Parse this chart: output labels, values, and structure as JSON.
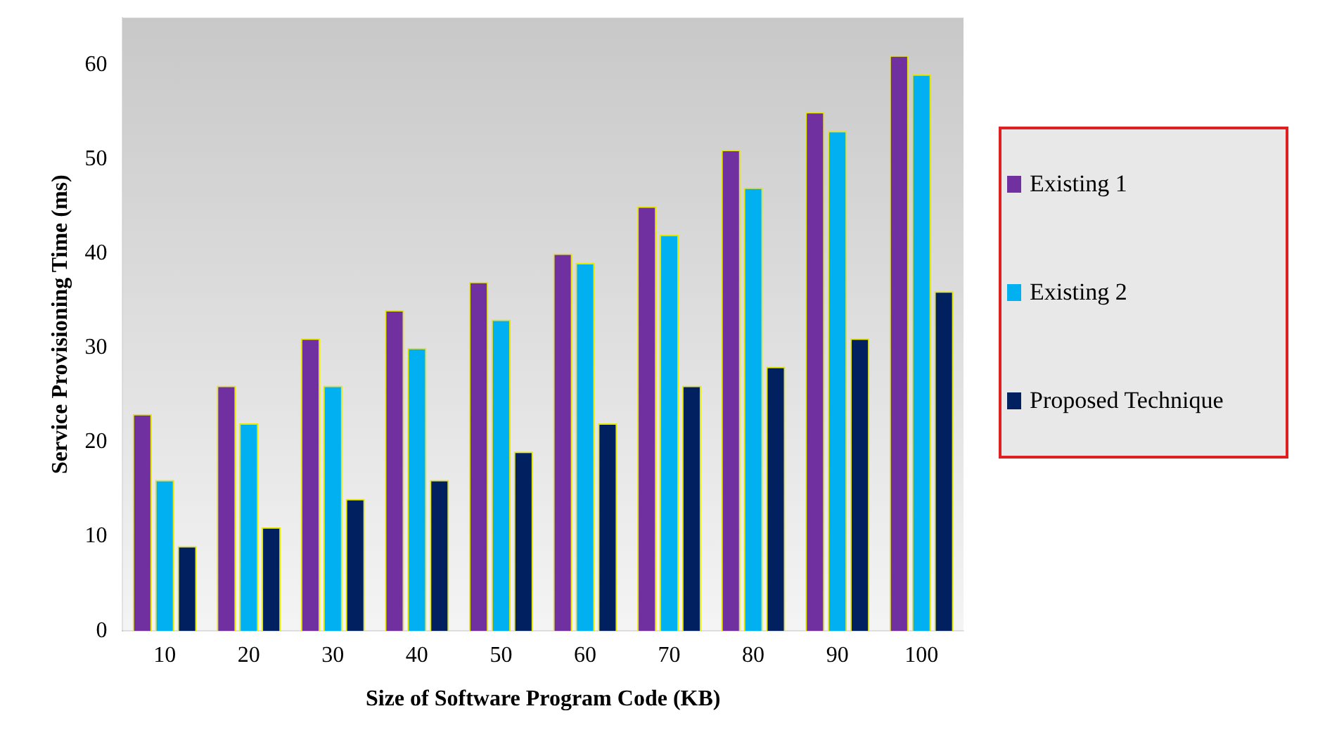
{
  "chart_data": {
    "type": "bar",
    "xlabel": "Size of Software Program Code (KB)",
    "ylabel": "Service Provisioning Time (ms)",
    "categories": [
      "10",
      "20",
      "30",
      "40",
      "50",
      "60",
      "70",
      "80",
      "90",
      "100"
    ],
    "series": [
      {
        "name": "Existing 1",
        "color": "#7030a0",
        "values": [
          23,
          26,
          31,
          34,
          37,
          40,
          45,
          51,
          55,
          61
        ]
      },
      {
        "name": "Existing 2",
        "color": "#00b0f0",
        "values": [
          16,
          22,
          26,
          30,
          33,
          39,
          42,
          47,
          53,
          59
        ]
      },
      {
        "name": "Proposed Technique",
        "color": "#002060",
        "values": [
          9,
          11,
          14,
          16,
          19,
          22,
          26,
          28,
          31,
          36
        ]
      }
    ],
    "ylim": [
      0,
      65
    ],
    "yticks": [
      0,
      10,
      20,
      30,
      40,
      50,
      60
    ],
    "grid": false,
    "legend": "right"
  }
}
